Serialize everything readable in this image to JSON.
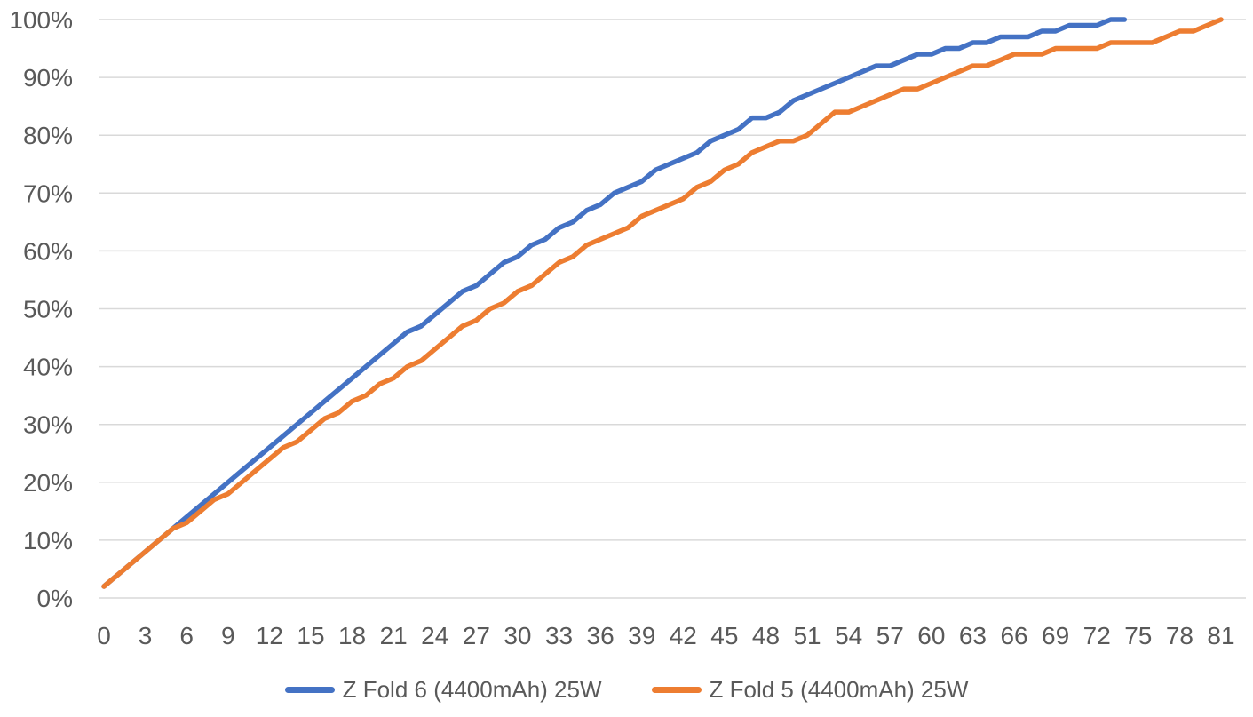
{
  "chart": {
    "background_color": "#FFFFFF",
    "text_color": "#595959",
    "gridline_color": "#D9D9D9"
  },
  "chart_data": {
    "type": "line",
    "title": "",
    "xlabel": "",
    "ylabel": "",
    "grid": "horizontal",
    "legend_position": "bottom-center",
    "x_axis": {
      "min": 0,
      "max": 81,
      "tick_step": 3
    },
    "y_axis": {
      "min": 0,
      "max": 100,
      "tick_step": 10,
      "format": "percent"
    },
    "x_tick_labels": [
      0,
      3,
      6,
      9,
      12,
      15,
      18,
      21,
      24,
      27,
      30,
      33,
      36,
      39,
      42,
      45,
      48,
      51,
      54,
      57,
      60,
      63,
      66,
      69,
      72,
      75,
      78,
      81
    ],
    "y_tick_labels": [
      "0%",
      "10%",
      "20%",
      "30%",
      "40%",
      "50%",
      "60%",
      "70%",
      "80%",
      "90%",
      "100%"
    ],
    "x_step_per_point": 1,
    "series": [
      {
        "name": "Z Fold 6 (4400mAh) 25W",
        "color": "#4472C4",
        "x_start": 0,
        "values": [
          2,
          4,
          6,
          8,
          10,
          12,
          14,
          16,
          18,
          20,
          22,
          24,
          26,
          28,
          30,
          32,
          34,
          36,
          38,
          40,
          42,
          44,
          46,
          47,
          49,
          51,
          53,
          54,
          56,
          58,
          59,
          61,
          62,
          64,
          65,
          67,
          68,
          70,
          71,
          72,
          74,
          75,
          76,
          77,
          79,
          80,
          81,
          83,
          83,
          84,
          86,
          87,
          88,
          89,
          90,
          91,
          92,
          92,
          93,
          94,
          94,
          95,
          95,
          96,
          96,
          97,
          97,
          97,
          98,
          98,
          99,
          99,
          99,
          100,
          100
        ]
      },
      {
        "name": "Z Fold 5 (4400mAh) 25W",
        "color": "#ED7D31",
        "x_start": 0,
        "values": [
          2,
          4,
          6,
          8,
          10,
          12,
          13,
          15,
          17,
          18,
          20,
          22,
          24,
          26,
          27,
          29,
          31,
          32,
          34,
          35,
          37,
          38,
          40,
          41,
          43,
          45,
          47,
          48,
          50,
          51,
          53,
          54,
          56,
          58,
          59,
          61,
          62,
          63,
          64,
          66,
          67,
          68,
          69,
          71,
          72,
          74,
          75,
          77,
          78,
          79,
          79,
          80,
          82,
          84,
          84,
          85,
          86,
          87,
          88,
          88,
          89,
          90,
          91,
          92,
          92,
          93,
          94,
          94,
          94,
          95,
          95,
          95,
          95,
          96,
          96,
          96,
          96,
          97,
          98,
          98,
          99,
          100
        ]
      }
    ]
  }
}
